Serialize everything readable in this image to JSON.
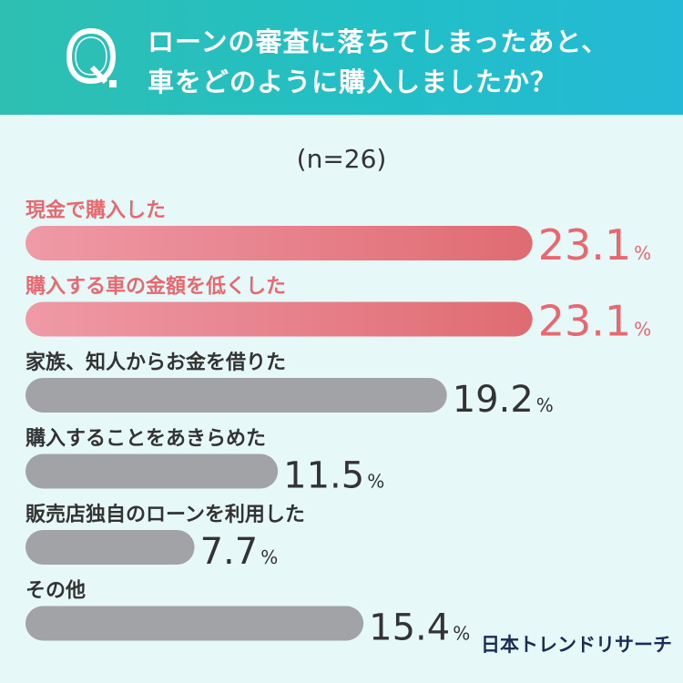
{
  "header": {
    "question_mark": "Q.",
    "question_line1": "ローンの審査に落ちてしまったあと、",
    "question_line2": "車をどのように購入しましたか？"
  },
  "sample_label": "(n=26)",
  "brand": "日本トレンドリサーチ",
  "colors": {
    "header": "#25bfc2",
    "highlight_bar_start": "#ef9aa7",
    "highlight_bar_end": "#e06b72",
    "highlight_text": "#e8686f",
    "normal_bar": "#a1a3a7",
    "normal_text": "#333333",
    "background": "#e7f8f8"
  },
  "chart_data": {
    "type": "bar",
    "orientation": "horizontal",
    "unit": "%",
    "categories": [
      "現金で購入した",
      "購入する車の金額を低くした",
      "家族、知人からお金を借りた",
      "購入することをあきらめた",
      "販売店独自のローンを利用した",
      "その他"
    ],
    "values": [
      23.1,
      23.1,
      19.2,
      11.5,
      7.7,
      15.4
    ],
    "value_labels": [
      "23.1",
      "23.1",
      "19.2",
      "11.5",
      "7.7",
      "15.4"
    ],
    "highlighted": [
      true,
      true,
      false,
      false,
      false,
      false
    ]
  }
}
